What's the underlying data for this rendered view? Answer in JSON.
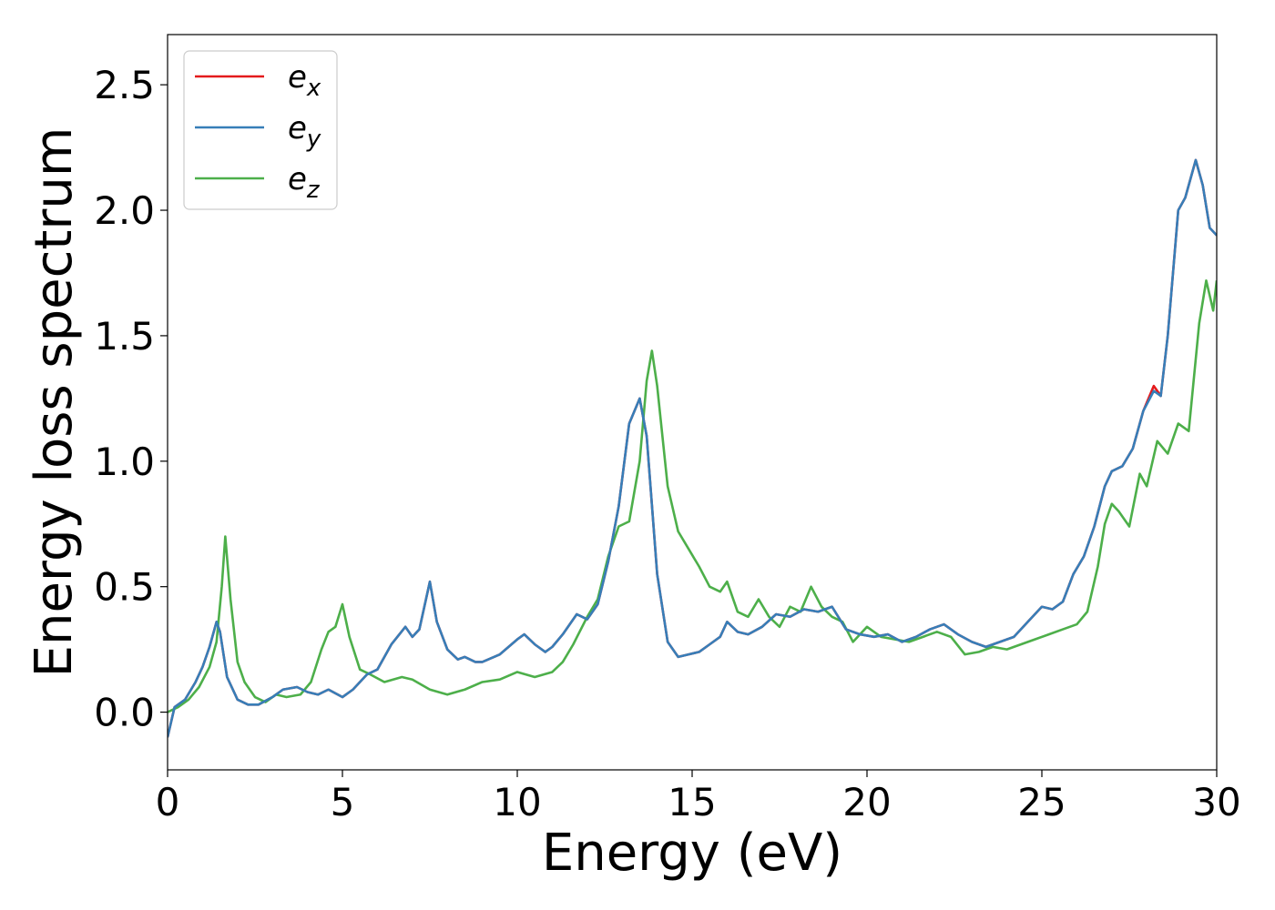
{
  "chart_data": {
    "type": "line",
    "xlabel": "Energy (eV)",
    "ylabel": "Energy loss spectrum",
    "xlim": [
      0,
      30
    ],
    "ylim": [
      -0.23,
      2.7
    ],
    "xticks": [
      "0",
      "5",
      "10",
      "15",
      "20",
      "25",
      "30"
    ],
    "yticks": [
      "0.0",
      "0.5",
      "1.0",
      "1.5",
      "2.0",
      "2.5"
    ],
    "grid": false,
    "legend_position": "top-left",
    "series": [
      {
        "name": "e_x",
        "label_base": "e",
        "label_sub": "x",
        "color": "#e41a1c",
        "x": [
          0,
          0.2,
          0.5,
          0.8,
          1.0,
          1.2,
          1.4,
          1.5,
          1.7,
          2.0,
          2.3,
          2.6,
          3.0,
          3.3,
          3.7,
          4.0,
          4.3,
          4.6,
          5.0,
          5.3,
          5.7,
          6.0,
          6.4,
          6.8,
          7.0,
          7.2,
          7.5,
          7.7,
          8.0,
          8.3,
          8.5,
          8.8,
          9.0,
          9.5,
          10.0,
          10.2,
          10.5,
          10.8,
          11.0,
          11.3,
          11.7,
          12.0,
          12.3,
          12.6,
          12.9,
          13.2,
          13.5,
          13.7,
          14.0,
          14.3,
          14.6,
          14.9,
          15.2,
          15.5,
          15.8,
          16.0,
          16.3,
          16.6,
          17.0,
          17.4,
          17.8,
          18.2,
          18.6,
          19.0,
          19.4,
          19.8,
          20.2,
          20.6,
          21.0,
          21.4,
          21.8,
          22.2,
          22.6,
          23.0,
          23.4,
          23.8,
          24.2,
          24.6,
          25.0,
          25.3,
          25.6,
          25.9,
          26.2,
          26.5,
          26.8,
          27.0,
          27.3,
          27.6,
          27.9,
          28.2,
          28.4,
          28.6,
          28.9,
          29.1,
          29.4,
          29.6,
          29.8,
          30.0
        ],
        "y": [
          -0.1,
          0.02,
          0.05,
          0.12,
          0.18,
          0.26,
          0.36,
          0.32,
          0.14,
          0.05,
          0.03,
          0.03,
          0.06,
          0.09,
          0.1,
          0.08,
          0.07,
          0.09,
          0.06,
          0.09,
          0.15,
          0.17,
          0.27,
          0.34,
          0.3,
          0.33,
          0.52,
          0.36,
          0.25,
          0.21,
          0.22,
          0.2,
          0.2,
          0.23,
          0.29,
          0.31,
          0.27,
          0.24,
          0.26,
          0.31,
          0.39,
          0.37,
          0.43,
          0.6,
          0.82,
          1.15,
          1.25,
          1.1,
          0.55,
          0.28,
          0.22,
          0.23,
          0.24,
          0.27,
          0.3,
          0.36,
          0.32,
          0.31,
          0.34,
          0.39,
          0.38,
          0.41,
          0.4,
          0.42,
          0.33,
          0.31,
          0.3,
          0.31,
          0.28,
          0.3,
          0.33,
          0.35,
          0.31,
          0.28,
          0.26,
          0.28,
          0.3,
          0.36,
          0.42,
          0.41,
          0.44,
          0.55,
          0.62,
          0.74,
          0.9,
          0.96,
          0.98,
          1.05,
          1.2,
          1.3,
          1.26,
          1.5,
          2.0,
          2.05,
          2.2,
          2.1,
          1.93,
          1.9
        ]
      },
      {
        "name": "e_y",
        "label_base": "e",
        "label_sub": "y",
        "color": "#377eb8",
        "x": [
          0,
          0.2,
          0.5,
          0.8,
          1.0,
          1.2,
          1.4,
          1.5,
          1.7,
          2.0,
          2.3,
          2.6,
          3.0,
          3.3,
          3.7,
          4.0,
          4.3,
          4.6,
          5.0,
          5.3,
          5.7,
          6.0,
          6.4,
          6.8,
          7.0,
          7.2,
          7.5,
          7.7,
          8.0,
          8.3,
          8.5,
          8.8,
          9.0,
          9.5,
          10.0,
          10.2,
          10.5,
          10.8,
          11.0,
          11.3,
          11.7,
          12.0,
          12.3,
          12.6,
          12.9,
          13.2,
          13.5,
          13.7,
          14.0,
          14.3,
          14.6,
          14.9,
          15.2,
          15.5,
          15.8,
          16.0,
          16.3,
          16.6,
          17.0,
          17.4,
          17.8,
          18.2,
          18.6,
          19.0,
          19.4,
          19.8,
          20.2,
          20.6,
          21.0,
          21.4,
          21.8,
          22.2,
          22.6,
          23.0,
          23.4,
          23.8,
          24.2,
          24.6,
          25.0,
          25.3,
          25.6,
          25.9,
          26.2,
          26.5,
          26.8,
          27.0,
          27.3,
          27.6,
          27.9,
          28.2,
          28.4,
          28.6,
          28.9,
          29.1,
          29.4,
          29.6,
          29.8,
          30.0
        ],
        "y": [
          -0.1,
          0.02,
          0.05,
          0.12,
          0.18,
          0.26,
          0.36,
          0.32,
          0.14,
          0.05,
          0.03,
          0.03,
          0.06,
          0.09,
          0.1,
          0.08,
          0.07,
          0.09,
          0.06,
          0.09,
          0.15,
          0.17,
          0.27,
          0.34,
          0.3,
          0.33,
          0.52,
          0.36,
          0.25,
          0.21,
          0.22,
          0.2,
          0.2,
          0.23,
          0.29,
          0.31,
          0.27,
          0.24,
          0.26,
          0.31,
          0.39,
          0.37,
          0.43,
          0.6,
          0.82,
          1.15,
          1.25,
          1.1,
          0.55,
          0.28,
          0.22,
          0.23,
          0.24,
          0.27,
          0.3,
          0.36,
          0.32,
          0.31,
          0.34,
          0.39,
          0.38,
          0.41,
          0.4,
          0.42,
          0.33,
          0.31,
          0.3,
          0.31,
          0.28,
          0.3,
          0.33,
          0.35,
          0.31,
          0.28,
          0.26,
          0.28,
          0.3,
          0.36,
          0.42,
          0.41,
          0.44,
          0.55,
          0.62,
          0.74,
          0.9,
          0.96,
          0.98,
          1.05,
          1.2,
          1.28,
          1.26,
          1.5,
          2.0,
          2.05,
          2.2,
          2.1,
          1.93,
          1.9
        ]
      },
      {
        "name": "e_z",
        "label_base": "e",
        "label_sub": "z",
        "color": "#4daf4a",
        "x": [
          0,
          0.3,
          0.6,
          0.9,
          1.2,
          1.4,
          1.55,
          1.65,
          1.8,
          2.0,
          2.2,
          2.5,
          2.8,
          3.1,
          3.4,
          3.8,
          4.1,
          4.4,
          4.6,
          4.8,
          5.0,
          5.2,
          5.5,
          5.8,
          6.2,
          6.7,
          7.0,
          7.5,
          8.0,
          8.5,
          9.0,
          9.5,
          10.0,
          10.5,
          11.0,
          11.3,
          11.6,
          12.0,
          12.3,
          12.6,
          12.9,
          13.2,
          13.5,
          13.7,
          13.85,
          14.0,
          14.3,
          14.6,
          14.9,
          15.2,
          15.5,
          15.8,
          16.0,
          16.3,
          16.6,
          16.9,
          17.2,
          17.5,
          17.8,
          18.1,
          18.4,
          18.7,
          19.0,
          19.3,
          19.6,
          20.0,
          20.4,
          20.8,
          21.2,
          21.6,
          22.0,
          22.4,
          22.8,
          23.2,
          23.6,
          24.0,
          24.4,
          24.8,
          25.2,
          25.6,
          26.0,
          26.3,
          26.6,
          26.8,
          27.0,
          27.2,
          27.5,
          27.8,
          28.0,
          28.3,
          28.6,
          28.9,
          29.2,
          29.5,
          29.7,
          29.9,
          30.0
        ],
        "y": [
          0.0,
          0.02,
          0.05,
          0.1,
          0.18,
          0.28,
          0.5,
          0.7,
          0.45,
          0.2,
          0.12,
          0.06,
          0.04,
          0.07,
          0.06,
          0.07,
          0.12,
          0.25,
          0.32,
          0.34,
          0.43,
          0.3,
          0.17,
          0.15,
          0.12,
          0.14,
          0.13,
          0.09,
          0.07,
          0.09,
          0.12,
          0.13,
          0.16,
          0.14,
          0.16,
          0.2,
          0.27,
          0.38,
          0.45,
          0.62,
          0.74,
          0.76,
          1.0,
          1.32,
          1.44,
          1.3,
          0.9,
          0.72,
          0.65,
          0.58,
          0.5,
          0.48,
          0.52,
          0.4,
          0.38,
          0.45,
          0.38,
          0.34,
          0.42,
          0.4,
          0.5,
          0.42,
          0.38,
          0.36,
          0.28,
          0.34,
          0.3,
          0.29,
          0.28,
          0.3,
          0.32,
          0.3,
          0.23,
          0.24,
          0.26,
          0.25,
          0.27,
          0.29,
          0.31,
          0.33,
          0.35,
          0.4,
          0.58,
          0.75,
          0.83,
          0.8,
          0.74,
          0.95,
          0.9,
          1.08,
          1.03,
          1.15,
          1.12,
          1.55,
          1.72,
          1.6,
          1.72
        ]
      }
    ]
  }
}
